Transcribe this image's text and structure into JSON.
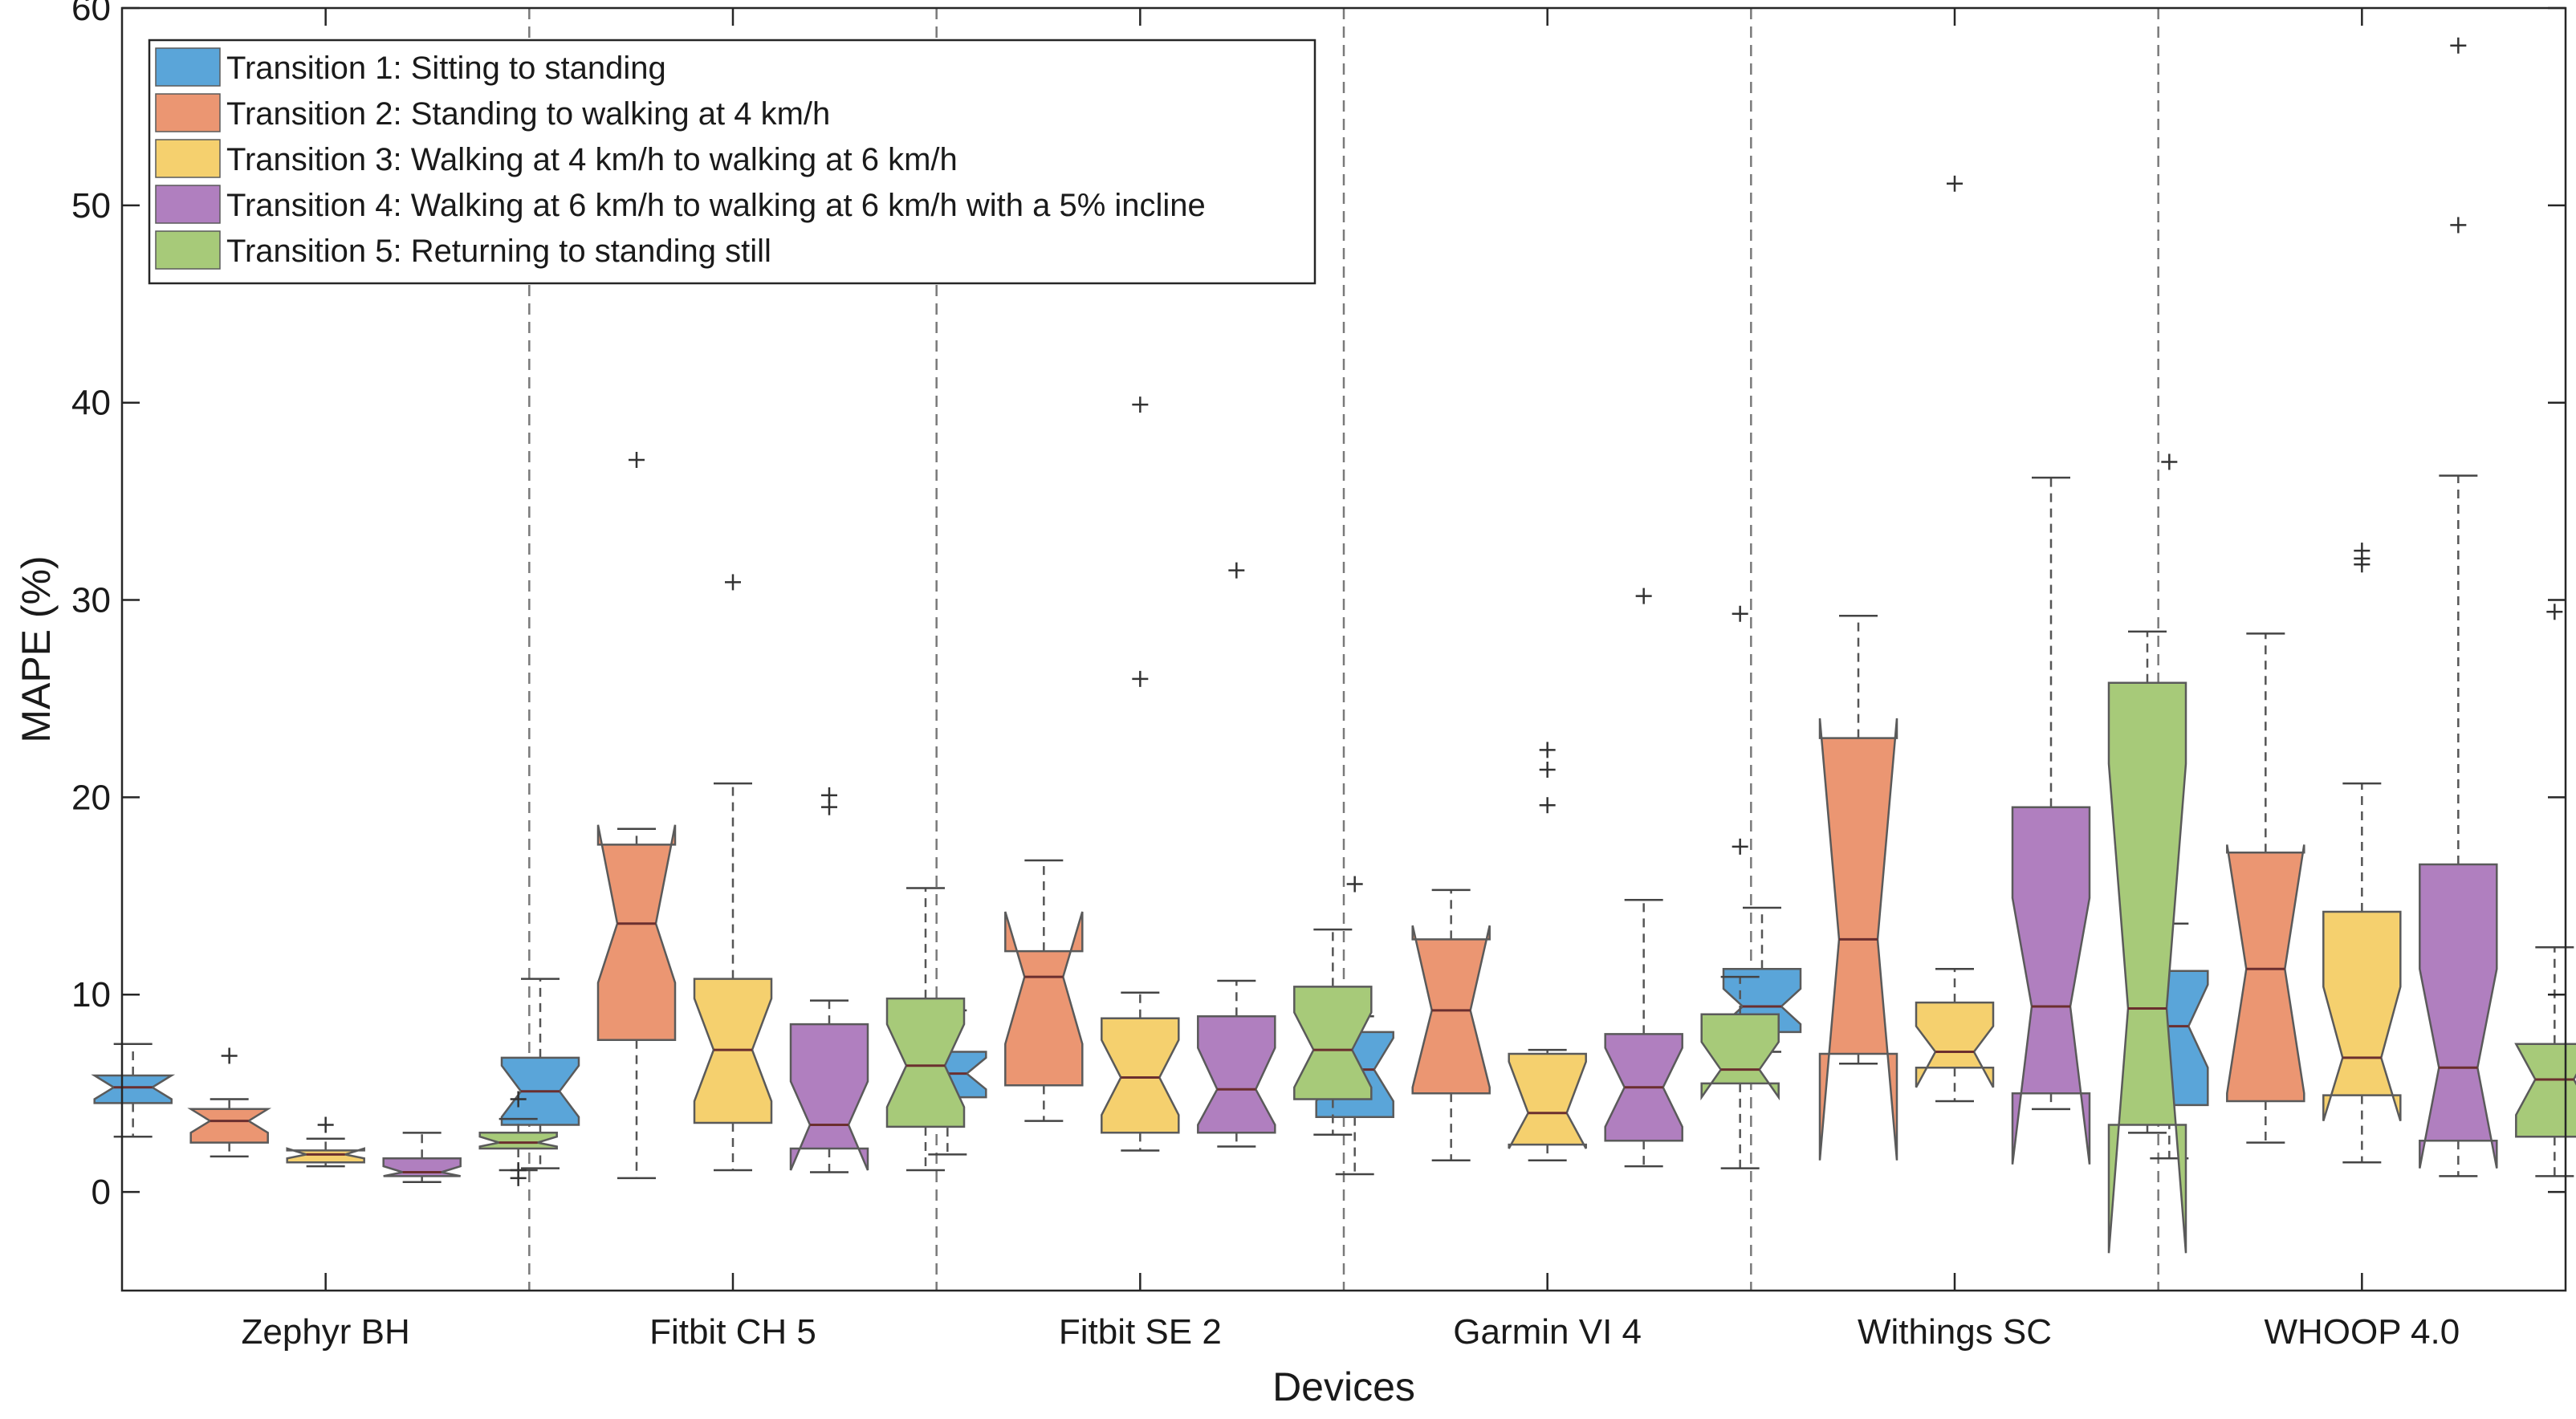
{
  "chart_data": {
    "type": "box",
    "title": "",
    "xlabel": "Devices",
    "ylabel": "MAPE (%)",
    "ylim": [
      -5,
      60
    ],
    "yticks": [
      0,
      10,
      20,
      30,
      40,
      50,
      60
    ],
    "categories": [
      "Zephyr BH",
      "Fitbit CH 5",
      "Fitbit SE 2",
      "Garmin VI 4",
      "Withings SC",
      "WHOOP 4.0"
    ],
    "legend_position": "top-left",
    "series": [
      {
        "name": "Transition 1: Sitting to standing",
        "color": "#5aa5d9",
        "boxes": [
          {
            "whisker_low": 2.8,
            "q1": 4.5,
            "median": 5.3,
            "q3": 5.9,
            "whisker_high": 7.5,
            "notch_low": 4.7,
            "notch_high": 5.9,
            "outliers": []
          },
          {
            "whisker_low": 1.2,
            "q1": 3.4,
            "median": 5.1,
            "q3": 6.8,
            "whisker_high": 10.8,
            "notch_low": 3.8,
            "notch_high": 6.4,
            "outliers": []
          },
          {
            "whisker_low": 1.9,
            "q1": 4.8,
            "median": 6.0,
            "q3": 7.1,
            "whisker_high": 9.2,
            "notch_low": 5.2,
            "notch_high": 6.8,
            "outliers": []
          },
          {
            "whisker_low": 0.9,
            "q1": 3.8,
            "median": 6.2,
            "q3": 8.1,
            "whisker_high": 8.9,
            "notch_low": 4.6,
            "notch_high": 7.8,
            "outliers": [
              15.6
            ]
          },
          {
            "whisker_low": 7.1,
            "q1": 8.1,
            "median": 9.4,
            "q3": 11.3,
            "whisker_high": 14.4,
            "notch_low": 8.5,
            "notch_high": 10.3,
            "outliers": []
          },
          {
            "whisker_low": 1.7,
            "q1": 4.4,
            "median": 8.4,
            "q3": 11.2,
            "whisker_high": 13.6,
            "notch_low": 6.3,
            "notch_high": 10.5,
            "outliers": [
              37.0
            ]
          }
        ]
      },
      {
        "name": "Transition 2: Standing to walking at 4 km/h",
        "color": "#eb9672",
        "boxes": [
          {
            "whisker_low": 1.8,
            "q1": 2.5,
            "median": 3.6,
            "q3": 4.2,
            "whisker_high": 4.7,
            "notch_low": 3.0,
            "notch_high": 4.2,
            "outliers": [
              6.9
            ]
          },
          {
            "whisker_low": 0.7,
            "q1": 7.7,
            "median": 13.6,
            "q3": 17.6,
            "whisker_high": 18.4,
            "notch_low": 10.6,
            "notch_high": 18.6,
            "outliers": [
              37.1
            ]
          },
          {
            "whisker_low": 3.6,
            "q1": 5.4,
            "median": 10.9,
            "q3": 12.2,
            "whisker_high": 16.8,
            "notch_low": 7.5,
            "notch_high": 14.2,
            "outliers": []
          },
          {
            "whisker_low": 1.6,
            "q1": 5.0,
            "median": 9.2,
            "q3": 12.8,
            "whisker_high": 15.3,
            "notch_low": 5.3,
            "notch_high": 13.5,
            "outliers": []
          },
          {
            "whisker_low": 6.5,
            "q1": 7.0,
            "median": 12.8,
            "q3": 23.0,
            "whisker_high": 29.2,
            "notch_low": 1.6,
            "notch_high": 24.0,
            "outliers": []
          },
          {
            "whisker_low": 2.5,
            "q1": 4.6,
            "median": 11.3,
            "q3": 17.2,
            "whisker_high": 28.3,
            "notch_low": 5.0,
            "notch_high": 17.6,
            "outliers": []
          }
        ]
      },
      {
        "name": "Transition 3: Walking at 4 km/h to walking at 6 km/h",
        "color": "#f5d06e",
        "boxes": [
          {
            "whisker_low": 1.3,
            "q1": 1.5,
            "median": 1.9,
            "q3": 2.1,
            "whisker_high": 2.7,
            "notch_low": 1.7,
            "notch_high": 2.2,
            "outliers": [
              3.4
            ]
          },
          {
            "whisker_low": 1.1,
            "q1": 3.5,
            "median": 7.2,
            "q3": 10.8,
            "whisker_high": 20.7,
            "notch_low": 4.6,
            "notch_high": 9.8,
            "outliers": [
              30.9
            ]
          },
          {
            "whisker_low": 2.1,
            "q1": 3.0,
            "median": 5.8,
            "q3": 8.8,
            "whisker_high": 10.1,
            "notch_low": 3.9,
            "notch_high": 7.7,
            "outliers": [
              26.0,
              39.9
            ]
          },
          {
            "whisker_low": 1.6,
            "q1": 2.4,
            "median": 4.0,
            "q3": 7.0,
            "whisker_high": 7.2,
            "notch_low": 2.2,
            "notch_high": 6.6,
            "outliers": [
              19.6,
              21.4,
              22.4
            ]
          },
          {
            "whisker_low": 4.6,
            "q1": 6.3,
            "median": 7.1,
            "q3": 9.6,
            "whisker_high": 11.3,
            "notch_low": 5.3,
            "notch_high": 8.4,
            "outliers": [
              51.1
            ]
          },
          {
            "whisker_low": 1.5,
            "q1": 4.9,
            "median": 6.8,
            "q3": 14.2,
            "whisker_high": 20.7,
            "notch_low": 3.6,
            "notch_high": 10.4,
            "outliers": [
              31.8,
              32.1,
              32.5
            ]
          }
        ]
      },
      {
        "name": "Transition 4: Walking at 6 km/h to walking at 6 km/h with a 5% incline",
        "color": "#b07fbf",
        "boxes": [
          {
            "whisker_low": 0.5,
            "q1": 0.8,
            "median": 1.0,
            "q3": 1.7,
            "whisker_high": 3.0,
            "notch_low": 0.8,
            "notch_high": 1.3,
            "outliers": []
          },
          {
            "whisker_low": 1.0,
            "q1": 2.2,
            "median": 3.4,
            "q3": 8.5,
            "whisker_high": 9.7,
            "notch_low": 1.1,
            "notch_high": 5.6,
            "outliers": [
              19.5,
              20.1
            ]
          },
          {
            "whisker_low": 2.3,
            "q1": 3.0,
            "median": 5.2,
            "q3": 8.9,
            "whisker_high": 10.7,
            "notch_low": 3.4,
            "notch_high": 7.3,
            "outliers": [
              31.5
            ]
          },
          {
            "whisker_low": 1.3,
            "q1": 2.6,
            "median": 5.3,
            "q3": 8.0,
            "whisker_high": 14.8,
            "notch_low": 3.3,
            "notch_high": 7.3,
            "outliers": [
              30.2
            ]
          },
          {
            "whisker_low": 4.2,
            "q1": 5.0,
            "median": 9.4,
            "q3": 19.5,
            "whisker_high": 36.2,
            "notch_low": 1.4,
            "notch_high": 14.9,
            "outliers": []
          },
          {
            "whisker_low": 0.8,
            "q1": 2.6,
            "median": 6.3,
            "q3": 16.6,
            "whisker_high": 36.3,
            "notch_low": 1.2,
            "notch_high": 11.3,
            "outliers": [
              49.0,
              58.1
            ]
          }
        ]
      },
      {
        "name": "Transition 5: Returning to standing still",
        "color": "#a7ca79",
        "boxes": [
          {
            "whisker_low": 1.1,
            "q1": 2.2,
            "median": 2.5,
            "q3": 3.0,
            "whisker_high": 3.7,
            "notch_low": 2.3,
            "notch_high": 2.8,
            "outliers": [
              0.7,
              1.1,
              4.7
            ]
          },
          {
            "whisker_low": 1.1,
            "q1": 3.3,
            "median": 6.4,
            "q3": 9.8,
            "whisker_high": 15.4,
            "notch_low": 4.3,
            "notch_high": 8.5,
            "outliers": []
          },
          {
            "whisker_low": 2.9,
            "q1": 4.7,
            "median": 7.2,
            "q3": 10.4,
            "whisker_high": 13.3,
            "notch_low": 5.3,
            "notch_high": 9.1,
            "outliers": []
          },
          {
            "whisker_low": 1.2,
            "q1": 5.5,
            "median": 6.2,
            "q3": 9.0,
            "whisker_high": 10.9,
            "notch_low": 4.8,
            "notch_high": 7.6,
            "outliers": [
              17.5,
              29.3
            ]
          },
          {
            "whisker_low": 3.0,
            "q1": 3.4,
            "median": 9.3,
            "q3": 25.8,
            "whisker_high": 28.4,
            "notch_low": -3.1,
            "notch_high": 21.7,
            "outliers": []
          },
          {
            "whisker_low": 0.8,
            "q1": 2.8,
            "median": 5.7,
            "q3": 7.5,
            "whisker_high": 12.4,
            "notch_low": 3.9,
            "notch_high": 7.5,
            "outliers": [
              29.4
            ]
          }
        ]
      }
    ]
  }
}
